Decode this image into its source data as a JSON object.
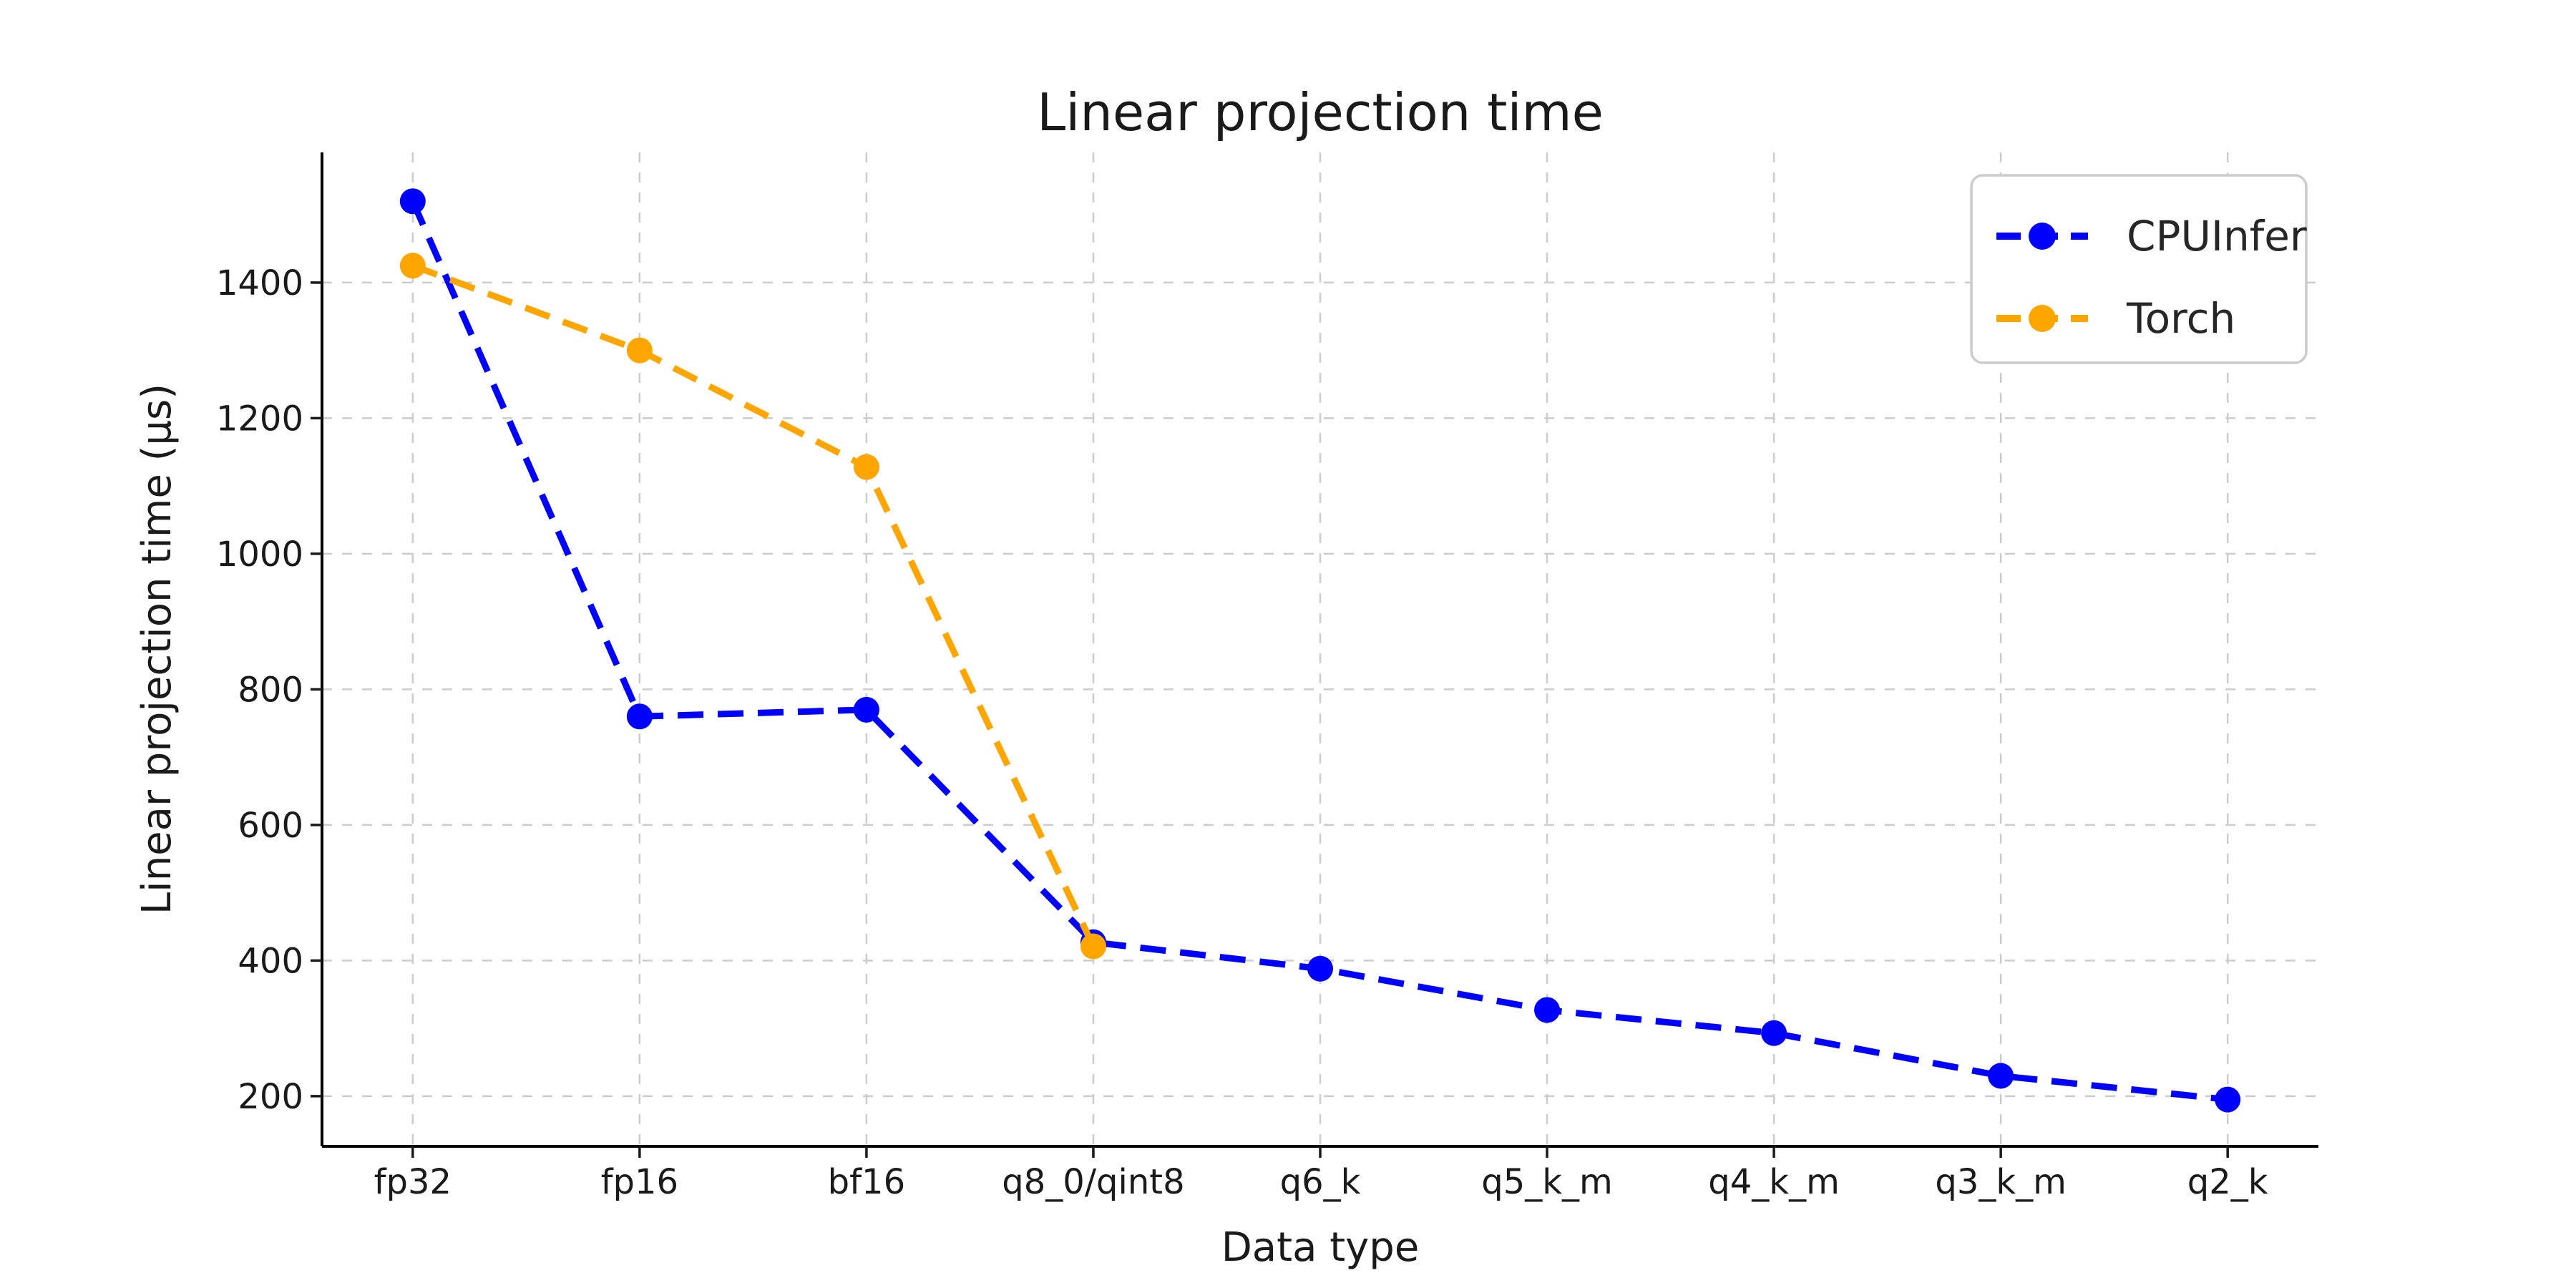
{
  "chart_data": {
    "type": "line",
    "title": "Linear projection time",
    "xlabel": "Data type",
    "ylabel": "Linear projection time (μs)",
    "categories": [
      "fp32",
      "fp16",
      "bf16",
      "q8_0/qint8",
      "q6_k",
      "q5_k_m",
      "q4_k_m",
      "q3_k_m",
      "q2_k"
    ],
    "series": [
      {
        "name": "CPUInfer",
        "color": "#0000ff",
        "values": [
          1520,
          760,
          770,
          427,
          388,
          327,
          293,
          230,
          195
        ]
      },
      {
        "name": "Torch",
        "color": "#ffa500",
        "values": [
          1425,
          1300,
          1128,
          421
        ]
      }
    ],
    "y_ticks": [
      200,
      400,
      600,
      800,
      1000,
      1200,
      1400
    ],
    "ylim": [
      126,
      1592
    ],
    "x_margin": 0.4,
    "grid": true,
    "line_style": "dashed",
    "marker": "circle",
    "legend_position": "upper right",
    "colors": {
      "grid": "#cccccc",
      "spine": "#000000",
      "tick": "#1a1a1a",
      "text": "#1a1a1a",
      "legend_border": "#cccccc",
      "background": "#ffffff"
    }
  }
}
